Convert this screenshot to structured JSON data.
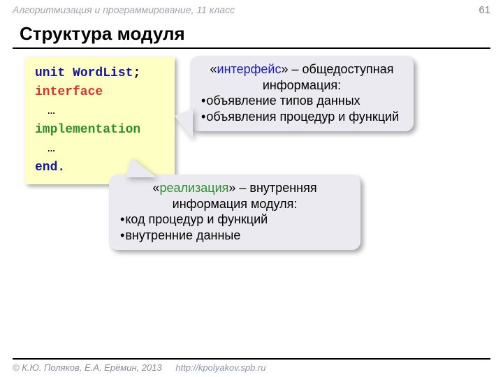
{
  "header": {
    "course": "Алгоритмизация и программирование, 11 класс",
    "page": "61"
  },
  "title": "Структура модуля",
  "code": {
    "unit_kw": "unit",
    "unit_name": "WordList",
    "semicolon": ";",
    "interface_kw": "interface",
    "ellipsis1": "…",
    "implementation_kw": "implementation",
    "ellipsis2": "…",
    "end_kw": "end."
  },
  "callout_interface": {
    "quoted": "интерфейс",
    "dash_text": "» – общедоступная информация:",
    "bullet1": "объявление типов данных",
    "bullet2": "объявления процедур и функций"
  },
  "callout_implementation": {
    "quoted": "реализация",
    "dash_text": "» –  внутренняя информация модуля:",
    "bullet1": "код процедур и функций",
    "bullet2": "внутренние данные"
  },
  "footer": {
    "copyright": "© К.Ю. Поляков, Е.А. Ерёмин, 2013",
    "url": "http://kpolyakov.spb.ru"
  },
  "colors": {
    "code_bg": "#feffc2",
    "callout_bg": "#eaeaf0",
    "kw_blue": "#1414a8",
    "kw_red": "#e02e2e",
    "kw_green": "#2e8f2e",
    "link_blue": "#2020c0"
  }
}
